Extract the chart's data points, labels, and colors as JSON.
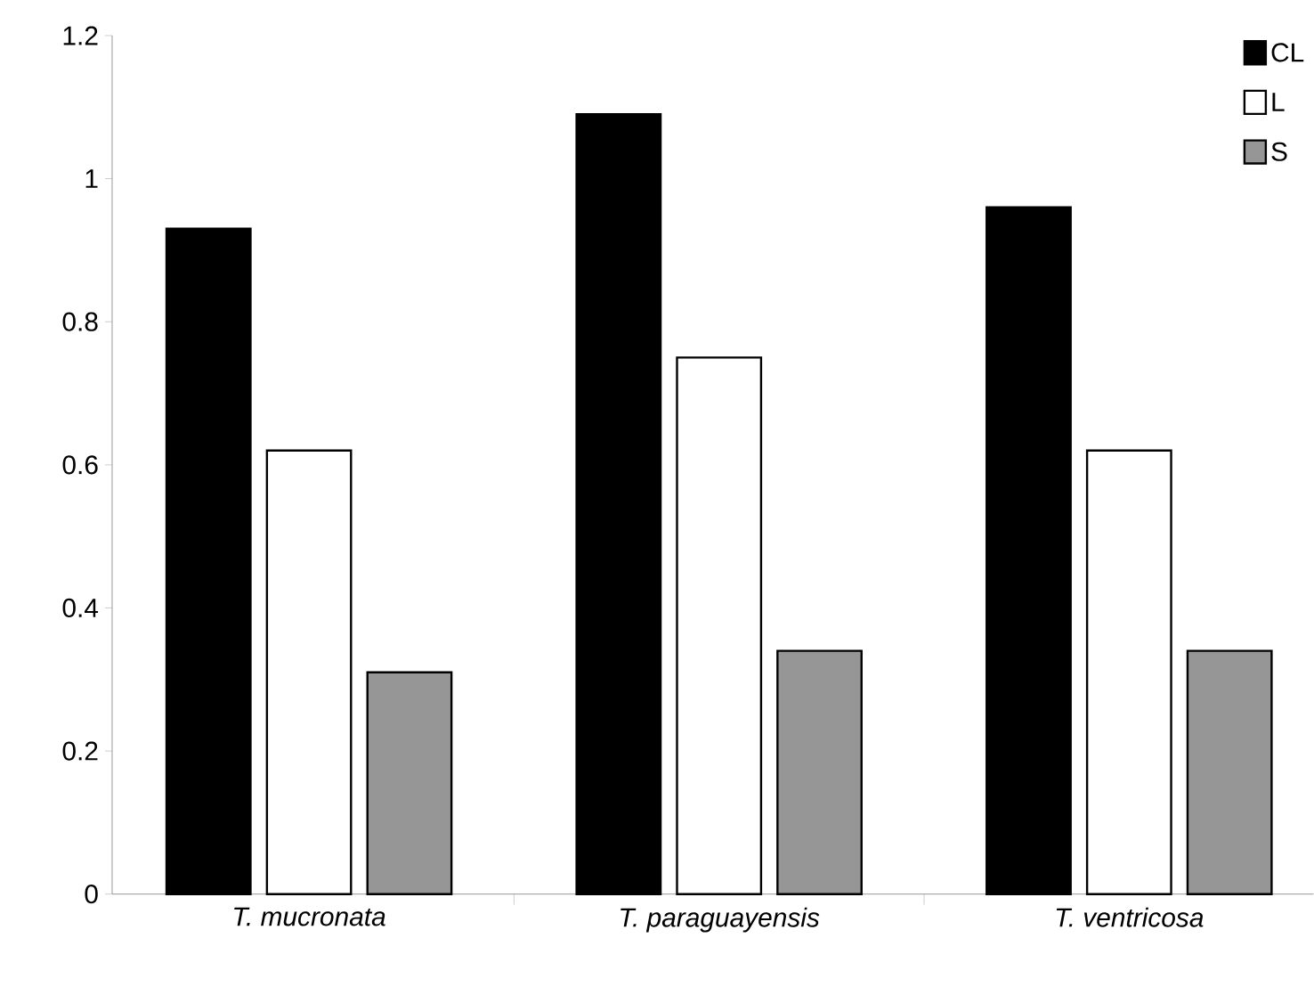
{
  "chart_data": {
    "type": "bar",
    "categories": [
      "T.  mucronata",
      "T. paraguayensis",
      "T. ventricosa"
    ],
    "series": [
      {
        "name": "CL",
        "color": "#000000",
        "values": [
          0.93,
          1.09,
          0.96
        ]
      },
      {
        "name": "L",
        "color": "#ffffff",
        "values": [
          0.62,
          0.75,
          0.62
        ]
      },
      {
        "name": "S",
        "color": "#969696",
        "values": [
          0.31,
          0.34,
          0.34
        ]
      }
    ],
    "ylim": [
      0,
      1.2
    ],
    "yticks": [
      0,
      0.2,
      0.4,
      0.6,
      0.8,
      1,
      1.2
    ],
    "grid": false,
    "legend": "top right"
  }
}
